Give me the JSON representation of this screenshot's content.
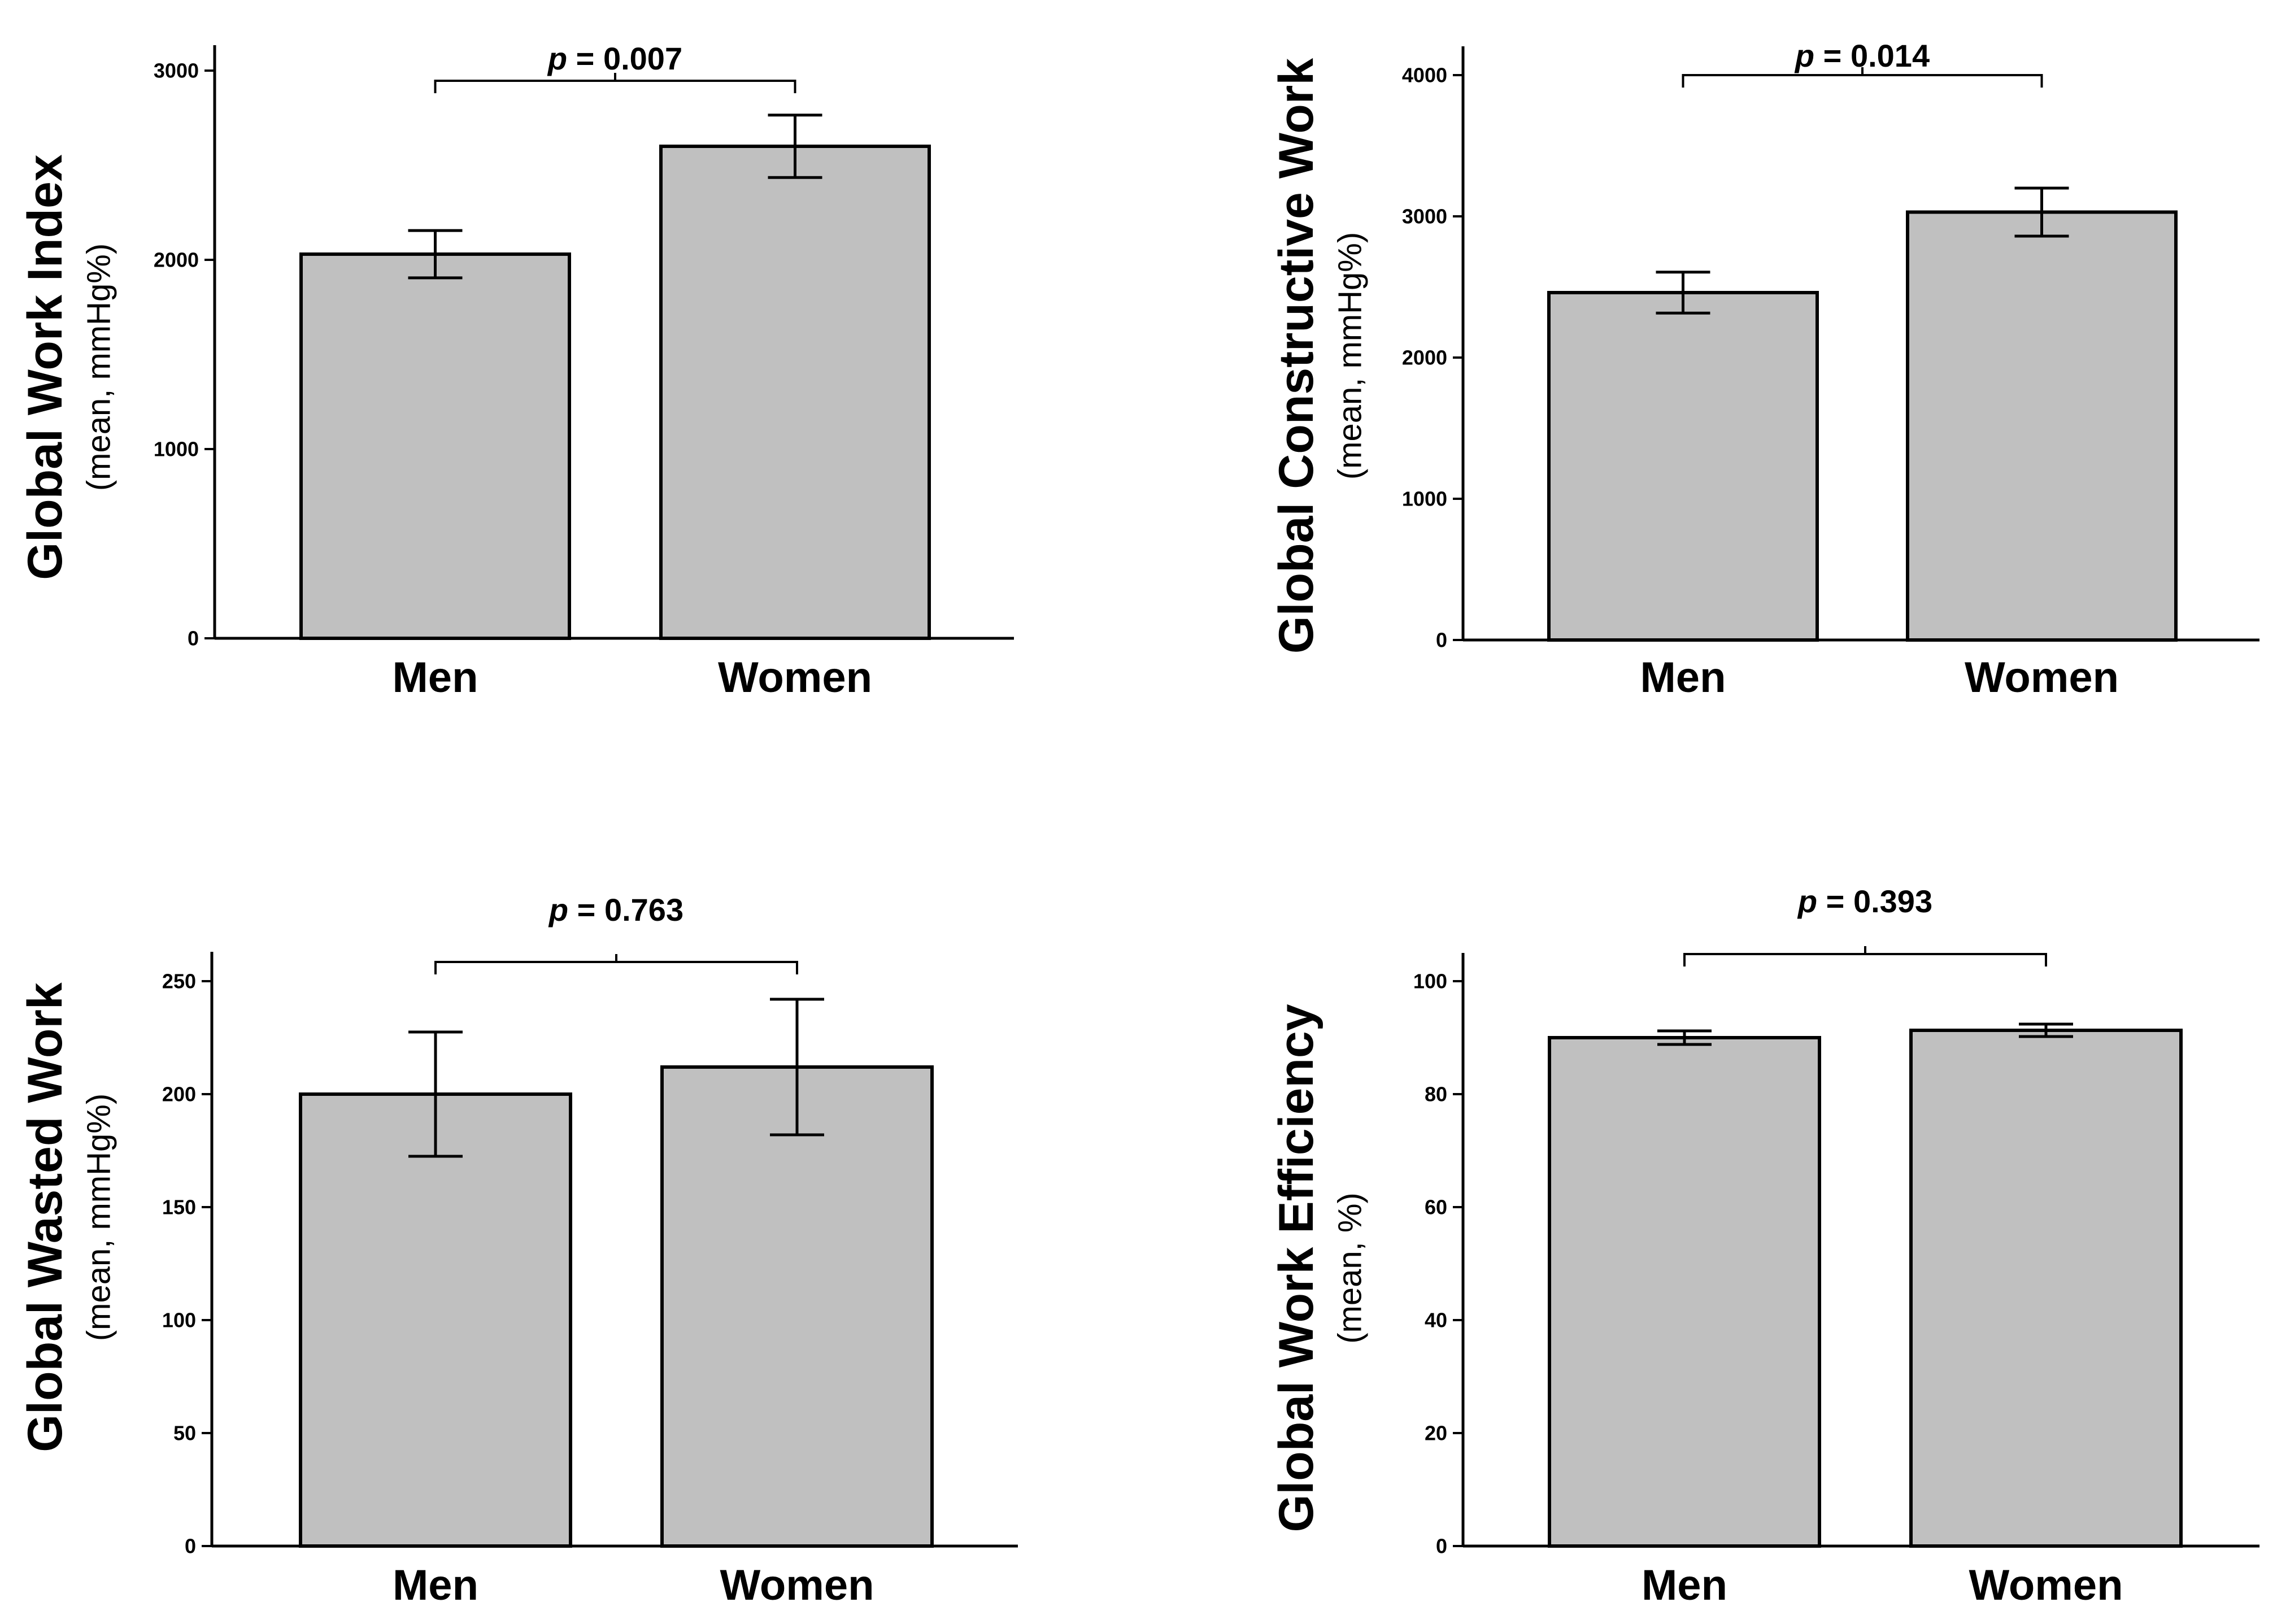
{
  "colors": {
    "bar_fill": "#c0c0c0",
    "bar_stroke": "#000000",
    "axis": "#000000"
  },
  "chart_data": [
    {
      "type": "bar",
      "title": "",
      "ylabel": "Global Work Index",
      "ylabel_sub": "(mean, mmHg%)",
      "xlabel": "",
      "categories": [
        "Men",
        "Women"
      ],
      "values": [
        2030,
        2600
      ],
      "errors": [
        125,
        165
      ],
      "ylim": [
        0,
        3000
      ],
      "yticks": [
        0,
        1000,
        2000,
        3000
      ],
      "ytick_labels": [
        "0",
        "1000",
        "2000",
        "3000"
      ],
      "pvalue": {
        "prefix": "p",
        "text": " = 0.007"
      }
    },
    {
      "type": "bar",
      "title": "",
      "ylabel": "Global Constructive Work",
      "ylabel_sub": "(mean, mmHg%)",
      "xlabel": "",
      "categories": [
        "Men",
        "Women"
      ],
      "values": [
        2460,
        3030
      ],
      "errors": [
        145,
        170
      ],
      "ylim": [
        0,
        4000
      ],
      "yticks": [
        0,
        1000,
        2000,
        3000,
        4000
      ],
      "ytick_labels": [
        "0",
        "1000",
        "2000",
        "3000",
        "4000"
      ],
      "pvalue": {
        "prefix": "p",
        "text": " = 0.014"
      }
    },
    {
      "type": "bar",
      "title": "",
      "ylabel": "Global Wasted Work",
      "ylabel_sub": "(mean, mmHg%)",
      "xlabel": "",
      "categories": [
        "Men",
        "Women"
      ],
      "values": [
        200,
        212
      ],
      "errors": [
        27.5,
        30
      ],
      "ylim": [
        0,
        250
      ],
      "yticks": [
        0,
        50,
        100,
        150,
        200,
        250
      ],
      "ytick_labels": [
        "0",
        "50",
        "100",
        "150",
        "200",
        "250"
      ],
      "pvalue": {
        "prefix": "p",
        "text": " = 0.763"
      }
    },
    {
      "type": "bar",
      "title": "",
      "ylabel": "Global Work Efficiency",
      "ylabel_sub": "(mean, %)",
      "xlabel": "",
      "categories": [
        "Men",
        "Women"
      ],
      "values": [
        90,
        91.3
      ],
      "errors": [
        1.2,
        1.1
      ],
      "ylim": [
        0,
        100
      ],
      "yticks": [
        0,
        20,
        40,
        60,
        80,
        100
      ],
      "ytick_labels": [
        "0",
        "20",
        "40",
        "60",
        "80",
        "100"
      ],
      "pvalue": {
        "prefix": "p",
        "text": " = 0.393"
      }
    }
  ]
}
